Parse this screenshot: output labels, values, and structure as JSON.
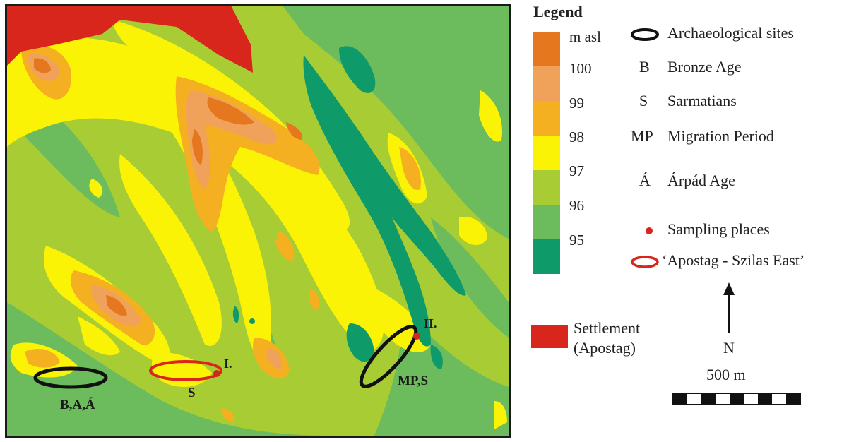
{
  "legend": {
    "title": "Legend",
    "elevation_unit": "m asl",
    "elevation_classes": [
      {
        "label": "100",
        "color": "#e5781e"
      },
      {
        "label": "99",
        "color": "#f0a25a"
      },
      {
        "label": "98",
        "color": "#f5b021"
      },
      {
        "label": "97",
        "color": "#fbf306"
      },
      {
        "label": "96",
        "color": "#a8cc33"
      },
      {
        "label": "95",
        "color": "#6cbb5c"
      },
      {
        "label": "",
        "color": "#0f9a6a"
      }
    ],
    "ramp_tick_labels": [
      "100",
      "99",
      "98",
      "97",
      "96",
      "95"
    ],
    "archaeological_sites": "Archaeological sites",
    "periods": [
      {
        "abbr": "B",
        "label": "Bronze Age"
      },
      {
        "abbr": "S",
        "label": "Sarmatians"
      },
      {
        "abbr": "MP",
        "label": "Migration Period"
      },
      {
        "abbr": "Á",
        "label": "Árpád Age"
      }
    ],
    "sampling_places": "Sampling places",
    "study_area": "‘Apostag - Szilas East’",
    "settlement_line1": "Settlement",
    "settlement_line2": "(Apostag)",
    "north": "N",
    "scale": "500 m"
  },
  "map": {
    "site_labels": {
      "site_1": "B,A,Á",
      "site_2": "S",
      "site_3": "MP,S"
    },
    "sampling_labels": {
      "point_1": "I.",
      "point_2": "II."
    }
  },
  "colors": {
    "settlement": "#d9261c",
    "sites_outline": "#111111",
    "study_area_outline": "#d9261c",
    "sampling_point": "#d9261c"
  }
}
